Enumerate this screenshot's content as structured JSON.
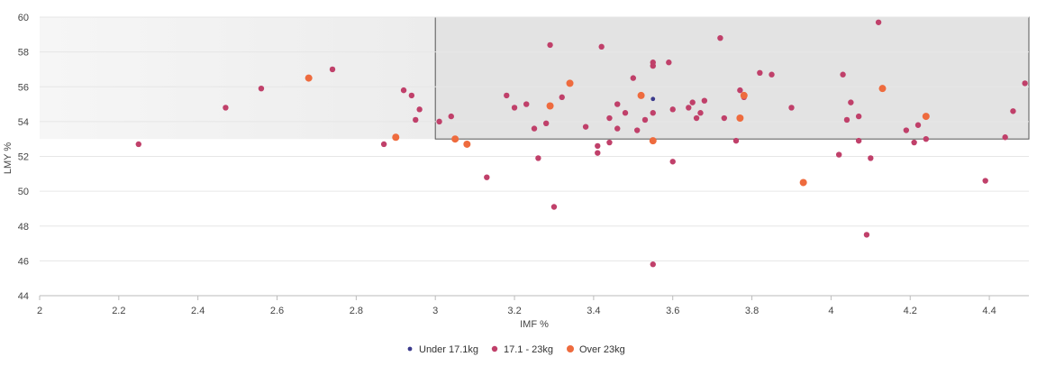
{
  "chart_data": {
    "type": "scatter",
    "title": "",
    "xlabel": "IMF %",
    "ylabel": "LMY %",
    "xlim": [
      2,
      4.5
    ],
    "ylim": [
      44,
      60
    ],
    "x_ticks": [
      "2",
      "2.2",
      "2.4",
      "2.6",
      "2.8",
      "3",
      "3.2",
      "3.4",
      "3.6",
      "3.8",
      "4",
      "4.2",
      "4.4"
    ],
    "y_ticks": [
      "44",
      "46",
      "48",
      "50",
      "52",
      "54",
      "56",
      "58",
      "60"
    ],
    "grid": "horizontal",
    "legend_position": "bottom",
    "target_regions": [
      {
        "x": [
          2,
          3
        ],
        "y": [
          53,
          60
        ],
        "style": "light"
      },
      {
        "x": [
          3,
          4.5
        ],
        "y": [
          53,
          60
        ],
        "style": "dark"
      }
    ],
    "series": [
      {
        "name": "Under 17.1kg",
        "color": "#3b3a8c",
        "points": [
          [
            3.55,
            55.3
          ]
        ]
      },
      {
        "name": "17.1 - 23kg",
        "color": "#c0406a",
        "points": [
          [
            2.25,
            52.7
          ],
          [
            2.47,
            54.8
          ],
          [
            2.56,
            55.9
          ],
          [
            2.74,
            57.0
          ],
          [
            2.87,
            52.7
          ],
          [
            2.92,
            55.8
          ],
          [
            2.94,
            55.5
          ],
          [
            2.95,
            54.1
          ],
          [
            2.96,
            54.7
          ],
          [
            3.01,
            54.0
          ],
          [
            3.04,
            54.3
          ],
          [
            3.13,
            50.8
          ],
          [
            3.18,
            55.5
          ],
          [
            3.2,
            54.8
          ],
          [
            3.23,
            55.0
          ],
          [
            3.25,
            53.6
          ],
          [
            3.26,
            51.9
          ],
          [
            3.28,
            53.9
          ],
          [
            3.29,
            58.4
          ],
          [
            3.3,
            49.1
          ],
          [
            3.32,
            55.4
          ],
          [
            3.38,
            53.7
          ],
          [
            3.41,
            52.6
          ],
          [
            3.41,
            52.2
          ],
          [
            3.42,
            58.3
          ],
          [
            3.44,
            54.2
          ],
          [
            3.44,
            52.8
          ],
          [
            3.46,
            55.0
          ],
          [
            3.46,
            53.6
          ],
          [
            3.48,
            54.5
          ],
          [
            3.5,
            56.5
          ],
          [
            3.51,
            53.5
          ],
          [
            3.53,
            54.1
          ],
          [
            3.55,
            57.4
          ],
          [
            3.55,
            57.2
          ],
          [
            3.55,
            54.5
          ],
          [
            3.55,
            45.8
          ],
          [
            3.59,
            57.4
          ],
          [
            3.6,
            54.7
          ],
          [
            3.6,
            51.7
          ],
          [
            3.64,
            54.8
          ],
          [
            3.65,
            55.1
          ],
          [
            3.66,
            54.2
          ],
          [
            3.67,
            54.5
          ],
          [
            3.68,
            55.2
          ],
          [
            3.72,
            58.8
          ],
          [
            3.73,
            54.2
          ],
          [
            3.76,
            52.9
          ],
          [
            3.77,
            55.8
          ],
          [
            3.78,
            55.4
          ],
          [
            3.82,
            56.8
          ],
          [
            3.85,
            56.7
          ],
          [
            3.9,
            54.8
          ],
          [
            4.02,
            52.1
          ],
          [
            4.03,
            56.7
          ],
          [
            4.04,
            54.1
          ],
          [
            4.05,
            55.1
          ],
          [
            4.07,
            52.9
          ],
          [
            4.07,
            54.3
          ],
          [
            4.09,
            47.5
          ],
          [
            4.1,
            51.9
          ],
          [
            4.12,
            59.7
          ],
          [
            4.19,
            53.5
          ],
          [
            4.21,
            52.8
          ],
          [
            4.22,
            53.8
          ],
          [
            4.24,
            53.0
          ],
          [
            4.39,
            50.6
          ],
          [
            4.44,
            53.1
          ],
          [
            4.46,
            54.6
          ],
          [
            4.49,
            56.2
          ]
        ]
      },
      {
        "name": "Over 23kg",
        "color": "#ee6b3e",
        "points": [
          [
            2.68,
            56.5
          ],
          [
            2.9,
            53.1
          ],
          [
            3.05,
            53.0
          ],
          [
            3.08,
            52.7
          ],
          [
            3.29,
            54.9
          ],
          [
            3.34,
            56.2
          ],
          [
            3.52,
            55.5
          ],
          [
            3.55,
            52.9
          ],
          [
            3.77,
            54.2
          ],
          [
            3.78,
            55.5
          ],
          [
            3.93,
            50.5
          ],
          [
            4.13,
            55.9
          ],
          [
            4.24,
            54.3
          ]
        ]
      }
    ]
  }
}
